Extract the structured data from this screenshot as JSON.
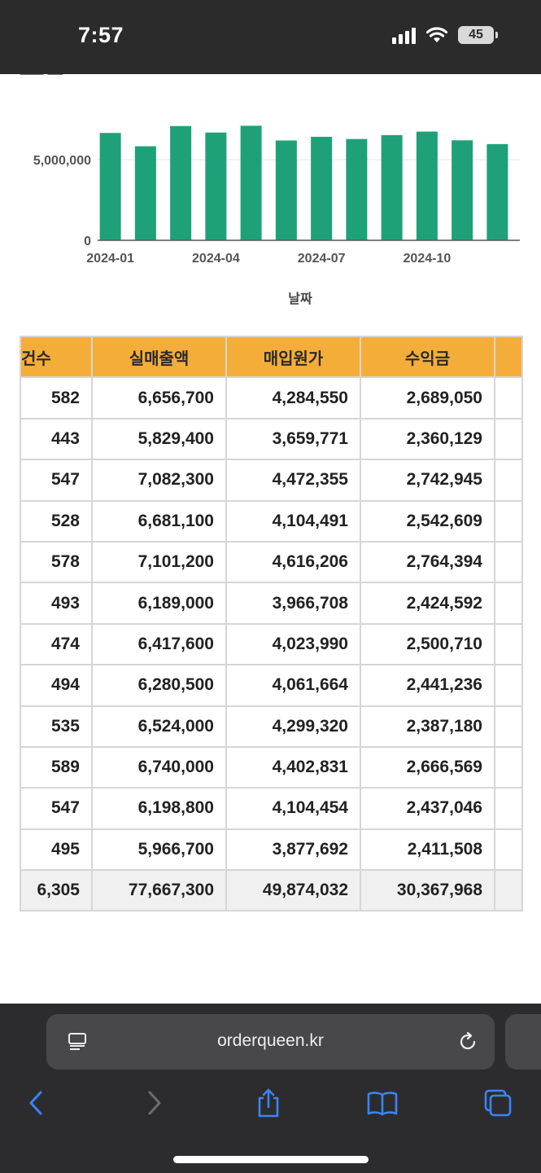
{
  "status_bar": {
    "time": "7:57",
    "battery": "45",
    "icons": [
      "signal-icon",
      "wifi-icon",
      "battery-icon"
    ]
  },
  "chart_data": {
    "type": "bar",
    "categories": [
      "2024-01",
      "2024-02",
      "2024-03",
      "2024-04",
      "2024-05",
      "2024-06",
      "2024-07",
      "2024-08",
      "2024-09",
      "2024-10",
      "2024-11",
      "2024-12"
    ],
    "values": [
      6656700,
      5829400,
      7082300,
      6681100,
      7101200,
      6189000,
      6417600,
      6280500,
      6524000,
      6740000,
      6198800,
      5966700
    ],
    "xtick_labels": [
      "2024-01",
      "2024-04",
      "2024-07",
      "2024-10"
    ],
    "ytick_labels": [
      "0",
      "5,000,000"
    ],
    "yticks": [
      0,
      5000000
    ],
    "xlabel": "날짜",
    "ylim": [
      0,
      7500000
    ],
    "grid": true,
    "bar_color": "#1ea179"
  },
  "table": {
    "headers": [
      "건수",
      "실매출액",
      "매입원가",
      "수익금",
      ""
    ],
    "header_color": "#f5ad3a",
    "rows": [
      [
        "582",
        "6,656,700",
        "4,284,550",
        "2,689,050",
        ""
      ],
      [
        "443",
        "5,829,400",
        "3,659,771",
        "2,360,129",
        ""
      ],
      [
        "547",
        "7,082,300",
        "4,472,355",
        "2,742,945",
        ""
      ],
      [
        "528",
        "6,681,100",
        "4,104,491",
        "2,542,609",
        ""
      ],
      [
        "578",
        "7,101,200",
        "4,616,206",
        "2,764,394",
        ""
      ],
      [
        "493",
        "6,189,000",
        "3,966,708",
        "2,424,592",
        ""
      ],
      [
        "474",
        "6,417,600",
        "4,023,990",
        "2,500,710",
        ""
      ],
      [
        "494",
        "6,280,500",
        "4,061,664",
        "2,441,236",
        ""
      ],
      [
        "535",
        "6,524,000",
        "4,299,320",
        "2,387,180",
        ""
      ],
      [
        "589",
        "6,740,000",
        "4,402,831",
        "2,666,569",
        ""
      ],
      [
        "547",
        "6,198,800",
        "4,104,454",
        "2,437,046",
        ""
      ],
      [
        "495",
        "5,966,700",
        "3,877,692",
        "2,411,508",
        ""
      ]
    ],
    "total": [
      "6,305",
      "77,667,300",
      "49,874,032",
      "30,367,968",
      ""
    ]
  },
  "browser": {
    "url": "orderqueen.kr",
    "icons": [
      "reader-icon",
      "reload-icon",
      "back-icon",
      "forward-icon",
      "share-icon",
      "bookmarks-icon",
      "tabs-icon"
    ]
  }
}
